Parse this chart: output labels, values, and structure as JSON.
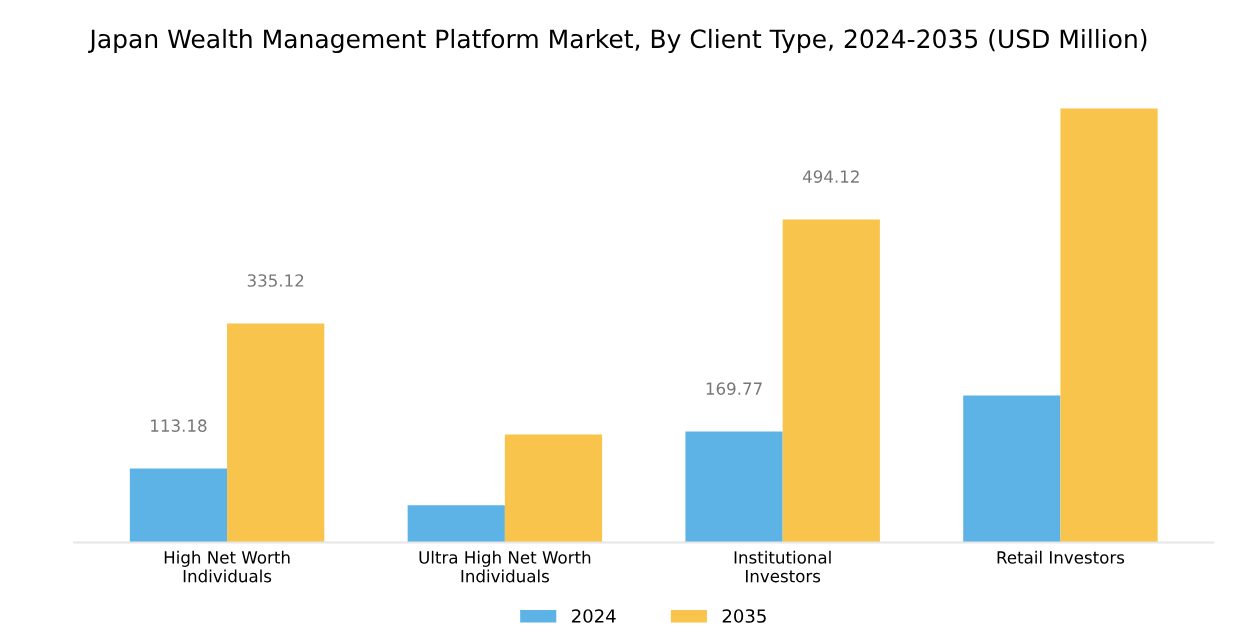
{
  "chart_data": {
    "type": "bar",
    "title": "Japan Wealth Management Platform Market, By Client Type, 2024-2035 (USD Million)",
    "categories": [
      "High Net Worth\nIndividuals",
      "Ultra High Net Worth\nIndividuals",
      "Institutional\nInvestors",
      "Retail Investors"
    ],
    "series": [
      {
        "name": "2024",
        "color": "#5db3e6",
        "values": [
          113.18,
          57,
          169.77,
          225
        ],
        "value_labels": [
          "113.18",
          null,
          "169.77",
          null
        ]
      },
      {
        "name": "2035",
        "color": "#f8c44b",
        "values": [
          335.12,
          165,
          494.12,
          664
        ],
        "value_labels": [
          "335.12",
          null,
          "494.12",
          null
        ]
      }
    ],
    "legend": "bottom",
    "grid": false,
    "tick_labels": "x"
  }
}
